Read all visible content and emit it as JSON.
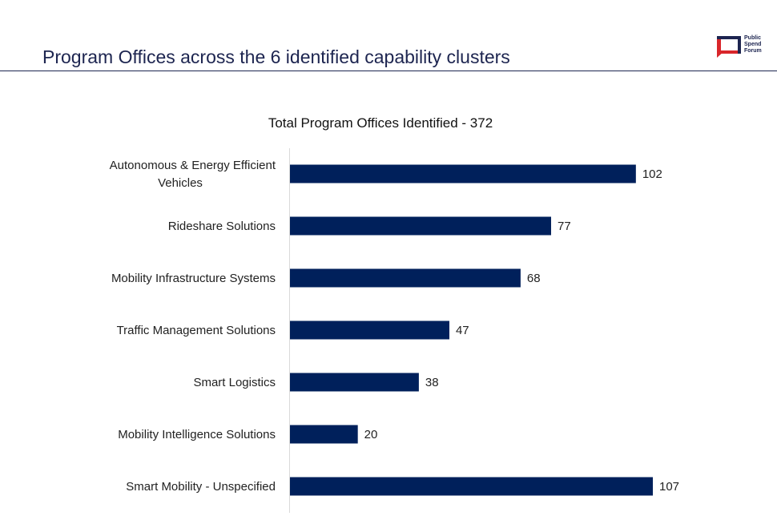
{
  "page": {
    "title": "Program Offices across the 6 identified capability clusters"
  },
  "logo": {
    "lines": [
      "Public",
      "Spend",
      "Forum"
    ]
  },
  "colors": {
    "bar": "#00205b",
    "title": "#1d2550",
    "logo_red": "#d9262b",
    "logo_navy": "#1d2550"
  },
  "chart_data": {
    "type": "bar",
    "orientation": "horizontal",
    "title": "Total Program Offices Identified - 372",
    "categories": [
      [
        "Autonomous & Energy Efficient",
        "Vehicles"
      ],
      [
        "Rideshare Solutions"
      ],
      [
        "Mobility Infrastructure Systems"
      ],
      [
        "Traffic Management Solutions"
      ],
      [
        "Smart Logistics"
      ],
      [
        "Mobility Intelligence Solutions"
      ],
      [
        "Smart Mobility - Unspecified"
      ]
    ],
    "values": [
      102,
      77,
      68,
      47,
      38,
      20,
      107
    ],
    "xlim": [
      0,
      107
    ],
    "grid": false,
    "legend": false,
    "data_labels": true
  }
}
